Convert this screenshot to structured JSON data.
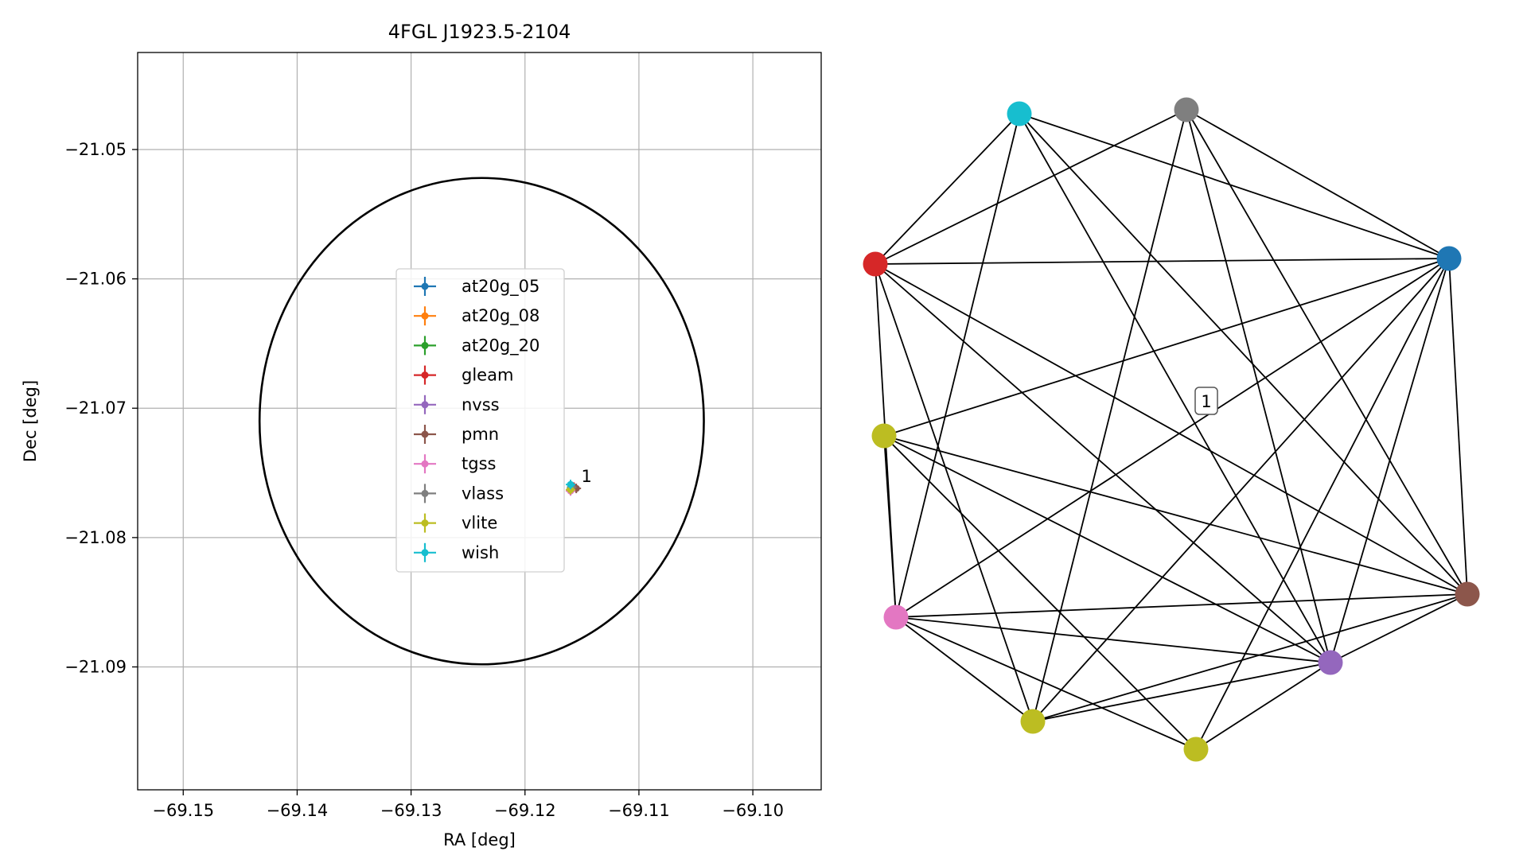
{
  "chart_data": [
    {
      "type": "scatter",
      "title": "4FGL J1923.5-2104",
      "xlabel": "RA [deg]",
      "ylabel": "Dec [deg]",
      "xlim": [
        -69.154,
        -69.094
      ],
      "ylim": [
        -21.0995,
        -21.0425
      ],
      "xticks": [
        -69.15,
        -69.14,
        -69.13,
        -69.12,
        -69.11,
        -69.1
      ],
      "xtick_labels": [
        "−69.15",
        "−69.14",
        "−69.13",
        "−69.12",
        "−69.11",
        "−69.10"
      ],
      "yticks": [
        -21.05,
        -21.06,
        -21.07,
        -21.08,
        -21.09
      ],
      "ytick_labels": [
        "−21.05",
        "−21.06",
        "−21.07",
        "−21.08",
        "−21.09"
      ],
      "grid": true,
      "legend_position": "center",
      "error_ellipse": {
        "center_ra": -69.1238,
        "center_dec": -21.071,
        "semi_ra": 0.0195,
        "semi_dec": 0.0188
      },
      "cluster_label": "1",
      "series": [
        {
          "name": "at20g_05",
          "color": "#1f77b4",
          "points": [
            [
              -69.1159,
              -21.0762
            ]
          ]
        },
        {
          "name": "at20g_08",
          "color": "#ff7f0e",
          "points": [
            [
              -69.1159,
              -21.0762
            ]
          ]
        },
        {
          "name": "at20g_20",
          "color": "#2ca02c",
          "points": [
            [
              -69.1159,
              -21.0762
            ]
          ]
        },
        {
          "name": "gleam",
          "color": "#d62728",
          "points": [
            [
              -69.1157,
              -21.0761
            ]
          ]
        },
        {
          "name": "nvss",
          "color": "#9467bd",
          "points": [
            [
              -69.1158,
              -21.0761
            ]
          ]
        },
        {
          "name": "pmn",
          "color": "#8c564b",
          "points": [
            [
              -69.1155,
              -21.0762
            ]
          ]
        },
        {
          "name": "tgss",
          "color": "#e377c2",
          "points": [
            [
              -69.116,
              -21.0764
            ]
          ]
        },
        {
          "name": "vlass",
          "color": "#7f7f7f",
          "points": [
            [
              -69.1159,
              -21.0761
            ]
          ]
        },
        {
          "name": "vlite",
          "color": "#bcbd22",
          "points": [
            [
              -69.116,
              -21.0763
            ]
          ]
        },
        {
          "name": "wish",
          "color": "#17becf",
          "points": [
            [
              -69.116,
              -21.0759
            ]
          ]
        }
      ]
    },
    {
      "type": "network",
      "group_label": "1",
      "nodes": [
        {
          "id": "wish",
          "color": "#17becf"
        },
        {
          "id": "vlass",
          "color": "#7f7f7f"
        },
        {
          "id": "gleam",
          "color": "#d62728"
        },
        {
          "id": "at20g",
          "color": "#1f77b4"
        },
        {
          "id": "vlite_a",
          "color": "#bcbd22"
        },
        {
          "id": "tgss",
          "color": "#e377c2"
        },
        {
          "id": "pmn",
          "color": "#8c564b"
        },
        {
          "id": "nvss",
          "color": "#9467bd"
        },
        {
          "id": "vlite_b",
          "color": "#bcbd22"
        },
        {
          "id": "vlite_c",
          "color": "#bcbd22"
        }
      ],
      "edges": [
        [
          "wish",
          "gleam"
        ],
        [
          "wish",
          "at20g"
        ],
        [
          "wish",
          "tgss"
        ],
        [
          "wish",
          "nvss"
        ],
        [
          "wish",
          "pmn"
        ],
        [
          "vlass",
          "gleam"
        ],
        [
          "vlass",
          "at20g"
        ],
        [
          "vlass",
          "vlite_b"
        ],
        [
          "vlass",
          "nvss"
        ],
        [
          "vlass",
          "pmn"
        ],
        [
          "gleam",
          "at20g"
        ],
        [
          "gleam",
          "tgss"
        ],
        [
          "gleam",
          "vlite_b"
        ],
        [
          "gleam",
          "nvss"
        ],
        [
          "gleam",
          "pmn"
        ],
        [
          "at20g",
          "vlite_a"
        ],
        [
          "at20g",
          "tgss"
        ],
        [
          "at20g",
          "vlite_b"
        ],
        [
          "at20g",
          "vlite_c"
        ],
        [
          "at20g",
          "nvss"
        ],
        [
          "at20g",
          "pmn"
        ],
        [
          "vlite_a",
          "tgss"
        ],
        [
          "vlite_a",
          "vlite_c"
        ],
        [
          "vlite_a",
          "nvss"
        ],
        [
          "vlite_a",
          "pmn"
        ],
        [
          "tgss",
          "vlite_b"
        ],
        [
          "tgss",
          "vlite_c"
        ],
        [
          "tgss",
          "nvss"
        ],
        [
          "tgss",
          "pmn"
        ],
        [
          "vlite_b",
          "nvss"
        ],
        [
          "vlite_b",
          "pmn"
        ],
        [
          "vlite_c",
          "nvss"
        ],
        [
          "nvss",
          "pmn"
        ]
      ]
    }
  ]
}
